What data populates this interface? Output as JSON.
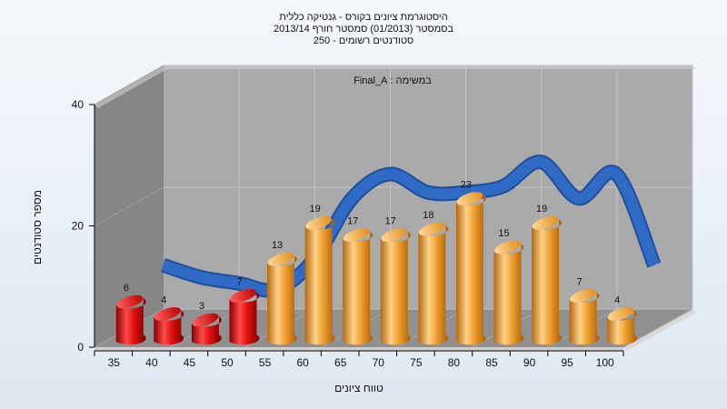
{
  "chart_data": {
    "type": "bar",
    "title_lines": [
      "היסטוגרמת ציונים בקורס - גנטיקה כללית",
      "בסמסטר  (01/2013)  סמסטר חורף 2013/14",
      "סטודנטים רשומים - 250"
    ],
    "annotation": "במשימה : Final_A",
    "xlabel": "טווח ציונים",
    "ylabel": "מספר סטודנטים",
    "ylim": [
      0,
      40
    ],
    "yticks": [
      "0",
      "20",
      "40"
    ],
    "categories": [
      "35",
      "40",
      "45",
      "50",
      "55",
      "60",
      "65",
      "70",
      "75",
      "80",
      "85",
      "90",
      "95",
      "100"
    ],
    "values": [
      6,
      4,
      3,
      7,
      13,
      19,
      17,
      17,
      18,
      23,
      15,
      19,
      7,
      4
    ],
    "bar_colors": [
      "red",
      "red",
      "red",
      "red",
      "orange",
      "orange",
      "orange",
      "orange",
      "orange",
      "orange",
      "orange",
      "orange",
      "orange",
      "orange"
    ],
    "trend_values": [
      9,
      7,
      6,
      5,
      10,
      20,
      24,
      21,
      21,
      22,
      26,
      20,
      24,
      9
    ],
    "grid": true,
    "legend": "none",
    "colors": {
      "red_bar": "#e01010",
      "orange_bar": "#f0a030",
      "trend": "#2f6ac4",
      "wall": "#a9a9a9",
      "side_wall": "#858585"
    }
  }
}
